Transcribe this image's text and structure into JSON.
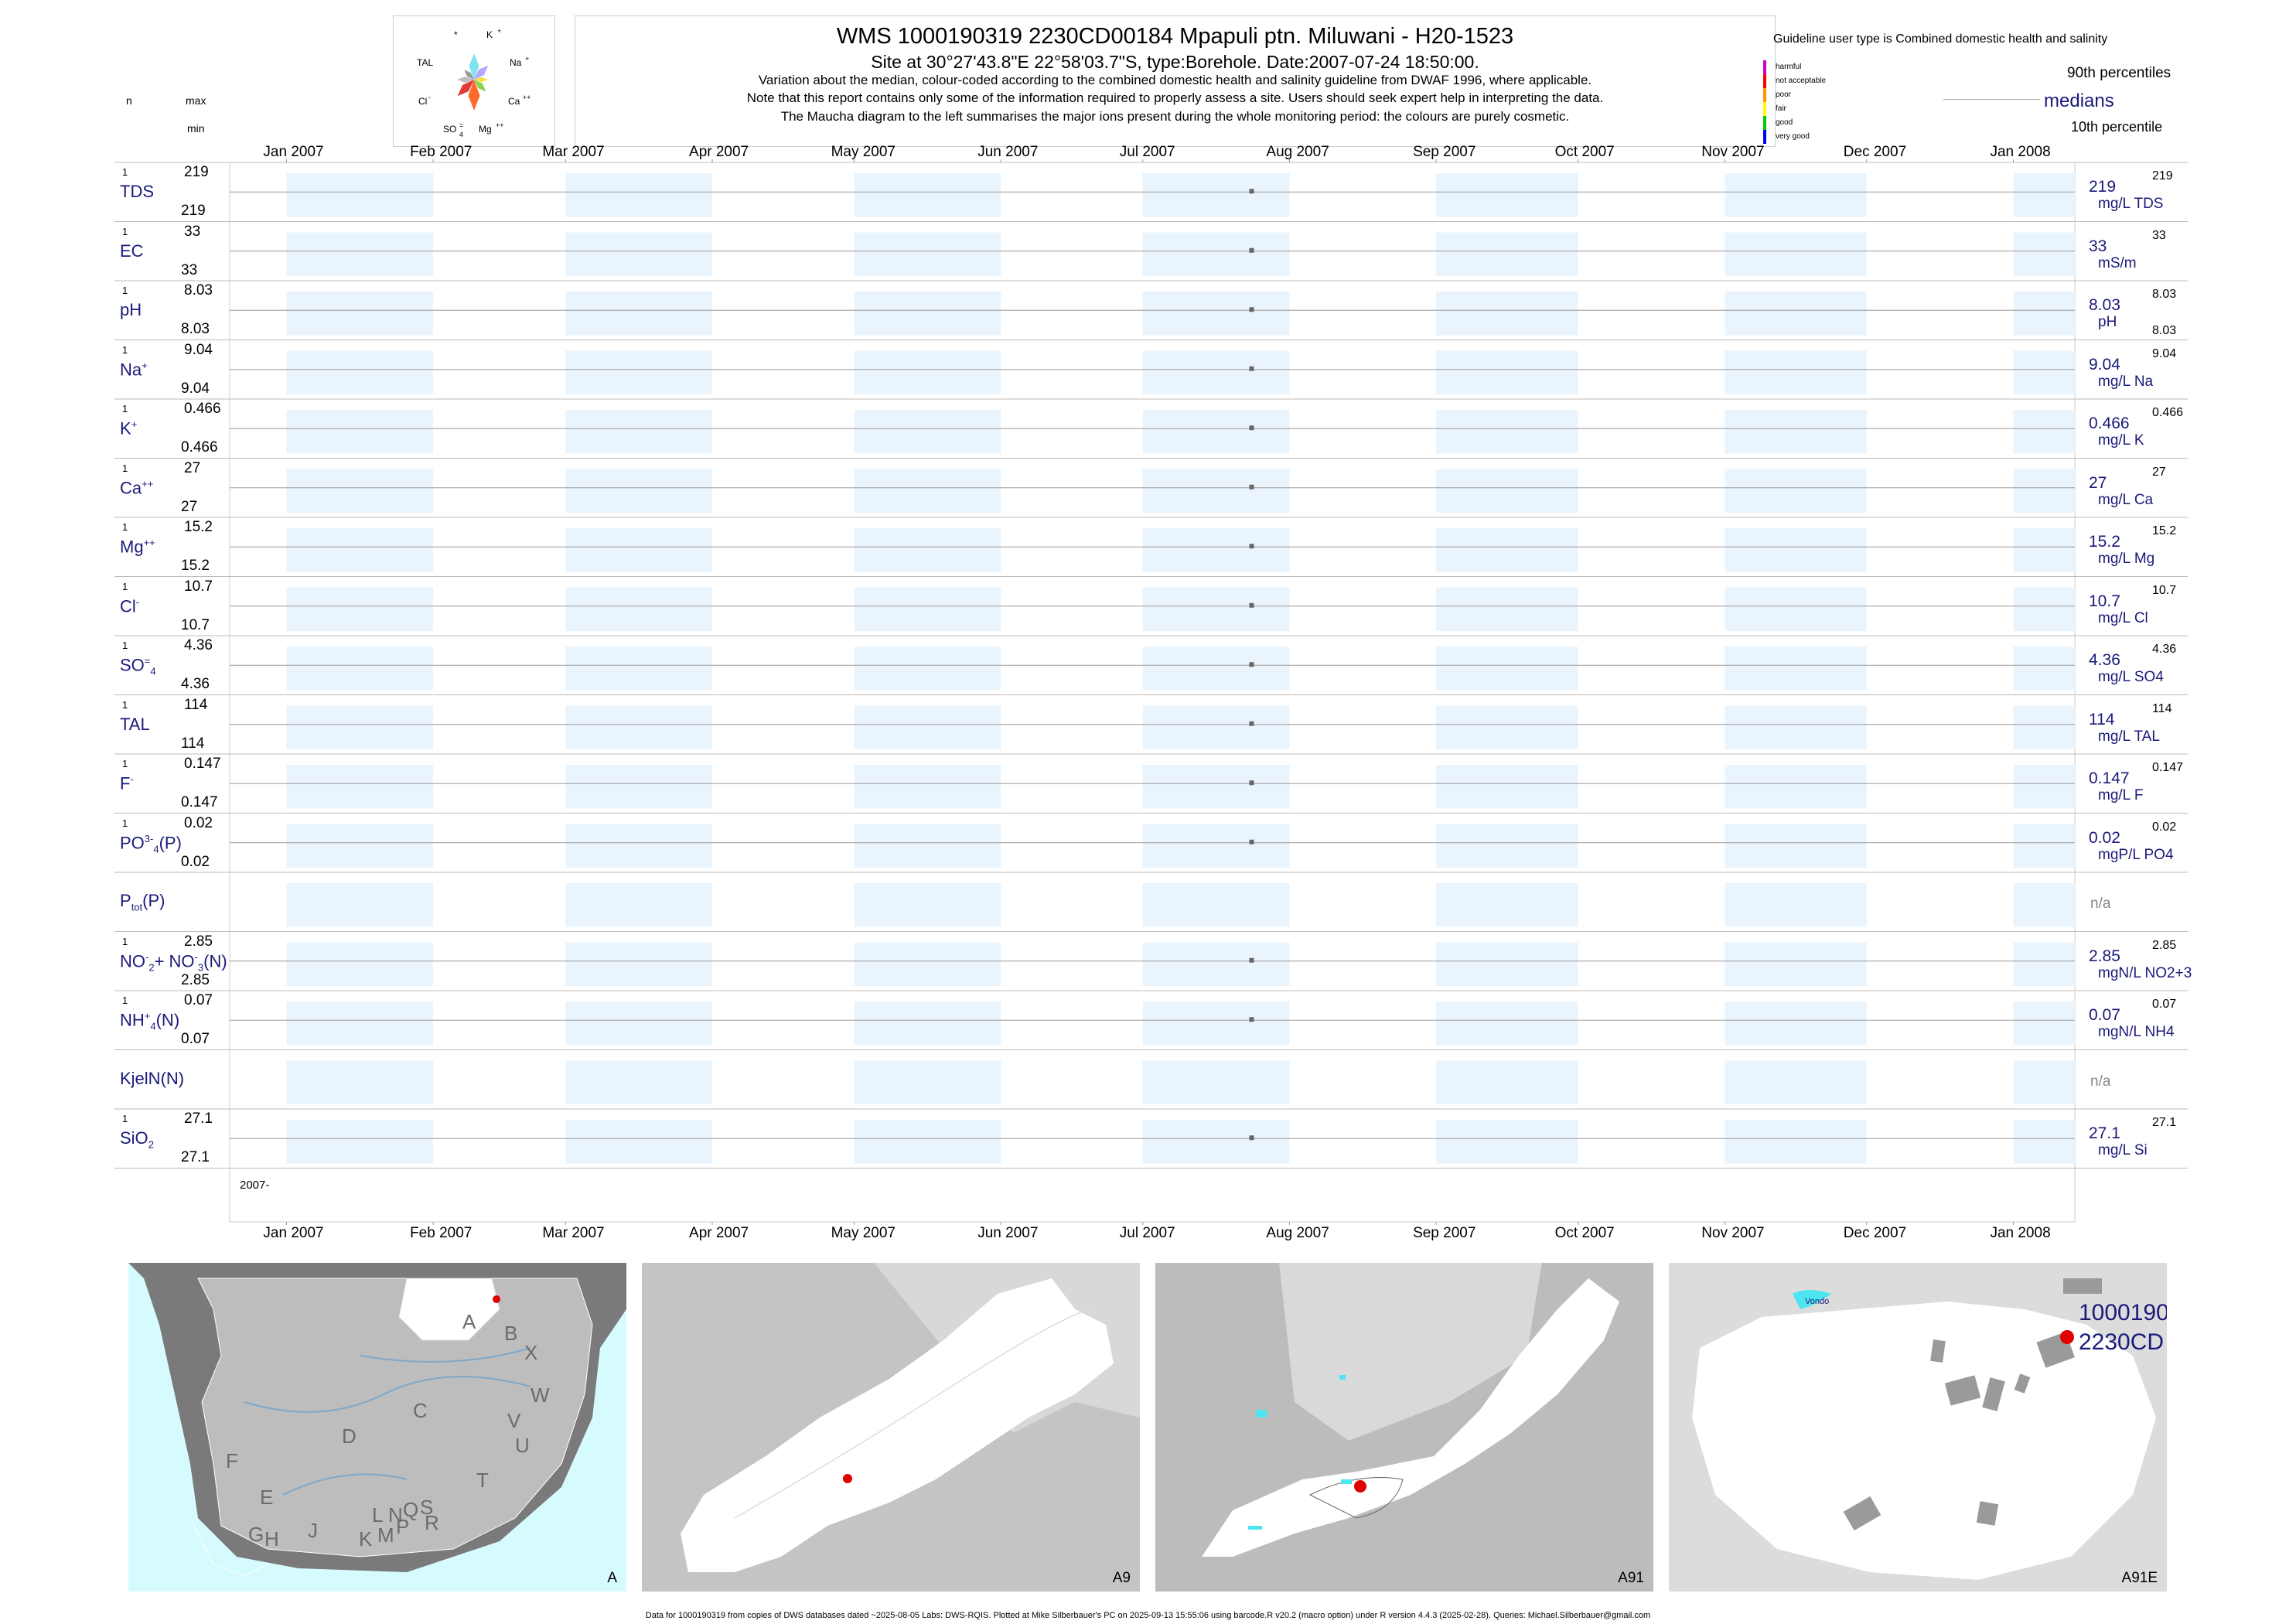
{
  "header": {
    "title": "WMS 1000190319 2230CD00184 Mpapuli ptn. Miluwani - H20-1523",
    "site": "Site at 30°27'43.8\"E 22°58'03.7\"S, type:Borehole. Date:2007-07-24 18:50:00.",
    "note1": "Variation about the median,  colour-coded according to the combined domestic health and salinity guideline from DWAF 1996, where applicable.",
    "note2": "Note that this report contains only some of the information required to properly assess a site. Users should seek expert help in interpreting the data.",
    "note3": "The Maucha diagram to the left summarises the major ions present during the whole monitoring period: the colours are purely cosmetic."
  },
  "maucha": {
    "labels": {
      "star": "*",
      "k": "K",
      "tal": "TAL",
      "na": "Na",
      "cl": "Cl",
      "ca": "Ca",
      "so4": "SO",
      "mg": "Mg"
    },
    "colors": [
      "#7fe3ef",
      "#b3a8ff",
      "#f5e24a",
      "#8fd14f",
      "#ff6a2a",
      "#e03a3a",
      "#bfbfbf",
      "#9a9a9a"
    ]
  },
  "left_header": {
    "n": "n",
    "max": "max",
    "min": "min"
  },
  "legend": {
    "guideline": "Guideline user type is Combined domestic health and salinity",
    "classes": [
      {
        "label": "harmful",
        "color": "#cc00cc"
      },
      {
        "label": "not acceptable",
        "color": "#ff0000"
      },
      {
        "label": "poor",
        "color": "#ff9900"
      },
      {
        "label": "fair",
        "color": "#ffff00"
      },
      {
        "label": "good",
        "color": "#00cc00"
      },
      {
        "label": "very good",
        "color": "#0000ff"
      }
    ],
    "p90": "90th percentiles",
    "medians": "medians",
    "p10": "10th percentile"
  },
  "chart_data": {
    "type": "scatter",
    "x_axis": {
      "ticks": [
        "Jan 2007",
        "Feb 2007",
        "Mar 2007",
        "Apr 2007",
        "May 2007",
        "Jun 2007",
        "Jul 2007",
        "Aug 2007",
        "Sep 2007",
        "Oct 2007",
        "Nov 2007",
        "Dec 2007",
        "Jan 2008"
      ],
      "year_label": "2007-",
      "range": [
        "2006-12-20",
        "2008-01-14"
      ]
    },
    "sample_date": "2007-07-24",
    "rows": [
      {
        "name": "TDS",
        "sup": "",
        "sub": "",
        "n": "1",
        "max": "219",
        "min": "219",
        "median": "219",
        "unit": "mg/L TDS",
        "p90": "219",
        "p10": ""
      },
      {
        "name": "EC",
        "sup": "",
        "sub": "",
        "n": "1",
        "max": "33",
        "min": "33",
        "median": "33",
        "unit": "mS/m",
        "p90": "33",
        "p10": ""
      },
      {
        "name": "pH",
        "sup": "",
        "sub": "",
        "n": "1",
        "max": "8.03",
        "min": "8.03",
        "median": "8.03",
        "unit": "pH",
        "p90": "8.03",
        "p10": "8.03"
      },
      {
        "name": "Na",
        "sup": "+",
        "sub": "",
        "n": "1",
        "max": "9.04",
        "min": "9.04",
        "median": "9.04",
        "unit": "mg/L Na",
        "p90": "9.04",
        "p10": ""
      },
      {
        "name": "K",
        "sup": "+",
        "sub": "",
        "n": "1",
        "max": "0.466",
        "min": "0.466",
        "median": "0.466",
        "unit": "mg/L K",
        "p90": "0.466",
        "p10": ""
      },
      {
        "name": "Ca",
        "sup": "++",
        "sub": "",
        "n": "1",
        "max": "27",
        "min": "27",
        "median": "27",
        "unit": "mg/L Ca",
        "p90": "27",
        "p10": ""
      },
      {
        "name": "Mg",
        "sup": "++",
        "sub": "",
        "n": "1",
        "max": "15.2",
        "min": "15.2",
        "median": "15.2",
        "unit": "mg/L Mg",
        "p90": "15.2",
        "p10": ""
      },
      {
        "name": "Cl",
        "sup": "-",
        "sub": "",
        "n": "1",
        "max": "10.7",
        "min": "10.7",
        "median": "10.7",
        "unit": "mg/L Cl",
        "p90": "10.7",
        "p10": ""
      },
      {
        "name": "SO",
        "sup": "=",
        "sub": "4",
        "n": "1",
        "max": "4.36",
        "min": "4.36",
        "median": "4.36",
        "unit": "mg/L SO4",
        "p90": "4.36",
        "p10": ""
      },
      {
        "name": "TAL",
        "sup": "",
        "sub": "",
        "n": "1",
        "max": "114",
        "min": "114",
        "median": "114",
        "unit": "mg/L TAL",
        "p90": "114",
        "p10": ""
      },
      {
        "name": "F",
        "sup": "-",
        "sub": "",
        "n": "1",
        "max": "0.147",
        "min": "0.147",
        "median": "0.147",
        "unit": "mg/L F",
        "p90": "0.147",
        "p10": ""
      },
      {
        "name": "PO",
        "sup": "3-",
        "sub": "4",
        "suffix": "(P)",
        "n": "1",
        "max": "0.02",
        "min": "0.02",
        "median": "0.02",
        "unit": "mgP/L PO4",
        "p90": "0.02",
        "p10": ""
      },
      {
        "name": "P",
        "sup": "",
        "sub": "tot",
        "suffix": "(P)",
        "n": "",
        "max": "",
        "min": "",
        "median": "n/a",
        "unit": "",
        "p90": "",
        "p10": ""
      },
      {
        "name": "NO",
        "sup": "-",
        "sub": "2",
        "suffix2": "+ NO",
        "sup2": "-",
        "sub2": "3",
        "suffix": "(N)",
        "n": "1",
        "max": "2.85",
        "min": "2.85",
        "median": "2.85",
        "unit": "mgN/L NO2+3",
        "p90": "2.85",
        "p10": ""
      },
      {
        "name": "NH",
        "sup": "+",
        "sub": "4",
        "suffix": "(N)",
        "n": "1",
        "max": "0.07",
        "min": "0.07",
        "median": "0.07",
        "unit": "mgN/L NH4",
        "p90": "0.07",
        "p10": ""
      },
      {
        "name": "KjelN(N)",
        "sup": "",
        "sub": "",
        "n": "",
        "max": "",
        "min": "",
        "median": "n/a",
        "unit": "",
        "p90": "",
        "p10": ""
      },
      {
        "name": "SiO",
        "sup": "",
        "sub": "2",
        "n": "1",
        "max": "27.1",
        "min": "27.1",
        "median": "27.1",
        "unit": "mg/L Si",
        "p90": "27.1",
        "p10": ""
      }
    ]
  },
  "maps": [
    {
      "label": "A",
      "regions": [
        "A",
        "B",
        "X",
        "W",
        "C",
        "V",
        "D",
        "U",
        "F",
        "T",
        "E",
        "L",
        "N",
        "Q",
        "S",
        "G",
        "H",
        "J",
        "K",
        "M",
        "P",
        "R"
      ]
    },
    {
      "label": "A9"
    },
    {
      "label": "A91"
    },
    {
      "label": "A91E",
      "place": "Vondo",
      "site_line1": "1000190",
      "site_line2": "2230CD"
    }
  ],
  "footer": "Data for 1000190319 from copies of DWS databases dated ~2025-08-05 Labs: DWS-RQIS. Plotted at Mike Silberbauer's PC on 2025-09-13 15:55:06 using barcode.R v20.2 (macro option) under R version 4.4.3 (2025-02-28). Queries: Michael.Silberbauer@gmail.com"
}
